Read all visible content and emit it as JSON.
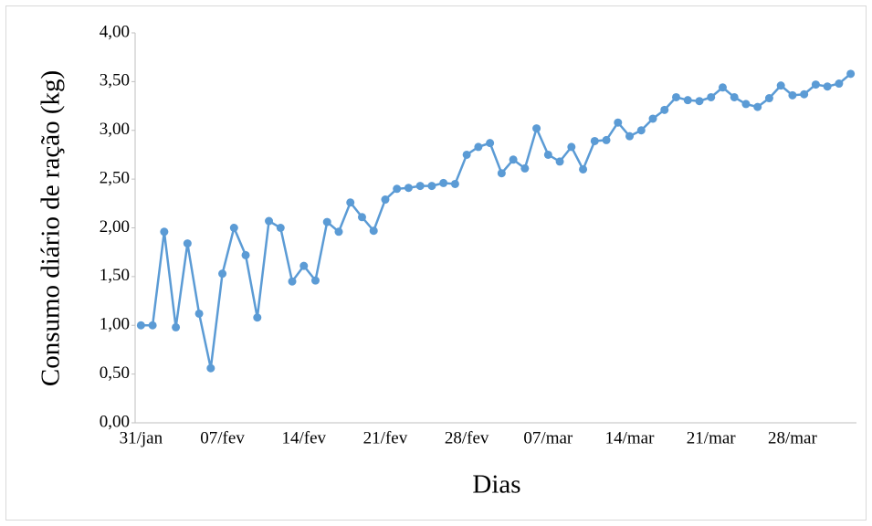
{
  "chart_data": {
    "type": "line",
    "x_label": "Dias",
    "y_label": "Consumo diário de ração (kg)",
    "categories": [
      "31/jan",
      null,
      null,
      null,
      null,
      null,
      null,
      "07/fev",
      null,
      null,
      null,
      null,
      null,
      null,
      "14/fev",
      null,
      null,
      null,
      null,
      null,
      null,
      "21/fev",
      null,
      null,
      null,
      null,
      null,
      null,
      "28/fev",
      null,
      null,
      null,
      null,
      null,
      null,
      "07/mar",
      null,
      null,
      null,
      null,
      null,
      null,
      "14/mar",
      null,
      null,
      null,
      null,
      null,
      null,
      "21/mar",
      null,
      null,
      null,
      null,
      null,
      null,
      "28/mar",
      null,
      null,
      null,
      null,
      null
    ],
    "values": [
      1.0,
      1.0,
      1.96,
      0.98,
      1.84,
      1.12,
      0.56,
      1.53,
      2.0,
      1.72,
      1.08,
      2.07,
      2.0,
      1.45,
      1.61,
      1.46,
      2.06,
      1.96,
      2.26,
      2.11,
      1.97,
      2.29,
      2.4,
      2.41,
      2.43,
      2.43,
      2.46,
      2.45,
      2.75,
      2.83,
      2.87,
      2.56,
      2.7,
      2.61,
      3.02,
      2.75,
      2.68,
      2.83,
      2.6,
      2.89,
      2.9,
      3.08,
      2.94,
      3.0,
      3.12,
      3.21,
      3.34,
      3.31,
      3.3,
      3.34,
      3.44,
      3.34,
      3.27,
      3.24,
      3.33,
      3.46,
      3.36,
      3.37,
      3.47,
      3.45,
      3.48,
      3.58
    ],
    "color": "#5b9bd5",
    "ylim": [
      0,
      4
    ],
    "yticks": [
      {
        "value": 0,
        "label": "0,00"
      },
      {
        "value": 0.5,
        "label": "0,50"
      },
      {
        "value": 1,
        "label": "1,00"
      },
      {
        "value": 1.5,
        "label": "1,50"
      },
      {
        "value": 2,
        "label": "2,00"
      },
      {
        "value": 2.5,
        "label": "2,50"
      },
      {
        "value": 3,
        "label": "3,00"
      },
      {
        "value": 3.5,
        "label": "3,50"
      },
      {
        "value": 4,
        "label": "4,00"
      }
    ],
    "grid": false
  }
}
